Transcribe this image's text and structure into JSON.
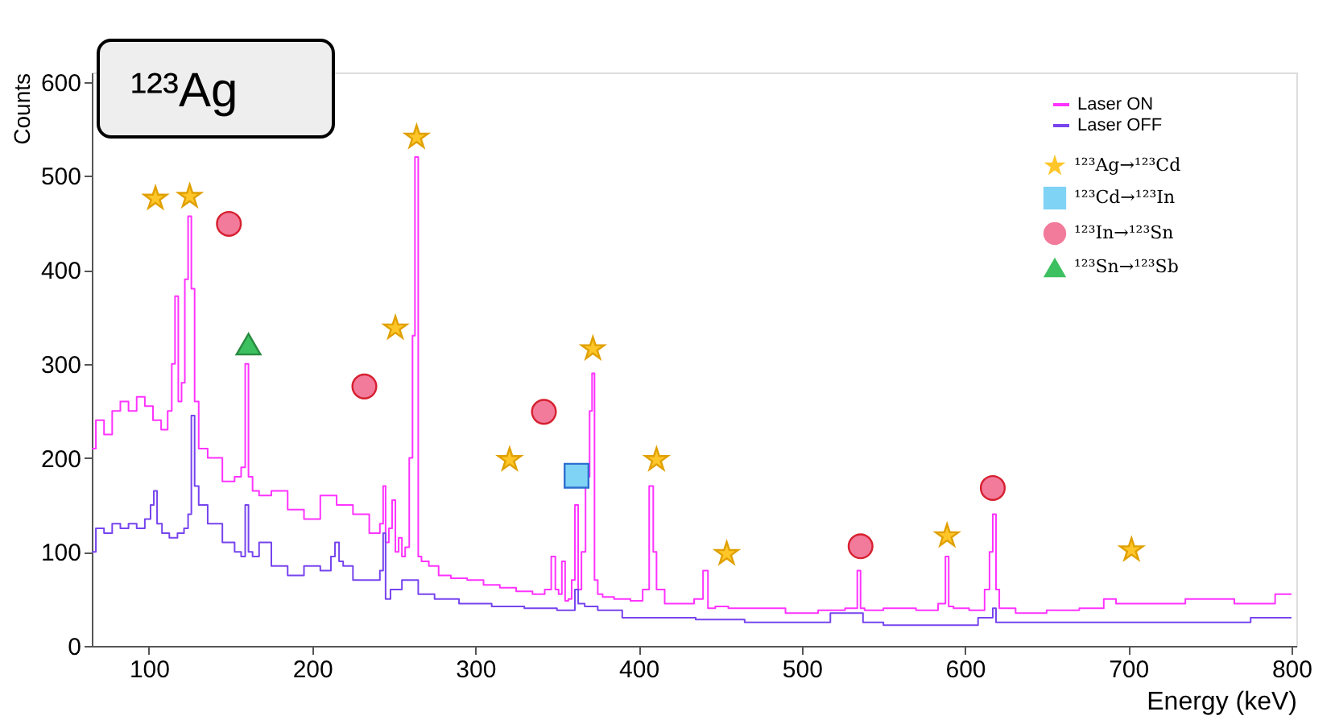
{
  "chart_data": {
    "type": "step",
    "xlabel": "Energy (keV)",
    "ylabel": "Counts",
    "xlim": [
      65,
      803
    ],
    "ylim": [
      0,
      610
    ],
    "xticks": [
      100,
      200,
      300,
      400,
      500,
      600,
      700,
      800
    ],
    "yticks": [
      0,
      100,
      200,
      300,
      400,
      500,
      600
    ],
    "grid": false,
    "legend": "top right",
    "annotations": [
      "¹²³Ag"
    ],
    "series": [
      {
        "name": "Laser ON",
        "color": "#ff33ff",
        "x": [
          65,
          70,
          75,
          80,
          85,
          90,
          95,
          100,
          105,
          110,
          113,
          115,
          117,
          119,
          121,
          123,
          125,
          127,
          129,
          132,
          140,
          150,
          155,
          158,
          160,
          162,
          165,
          170,
          180,
          190,
          200,
          210,
          220,
          230,
          240,
          243,
          244,
          246,
          248,
          250,
          252,
          254,
          256,
          258,
          261,
          262,
          264,
          266,
          268,
          275,
          280,
          290,
          300,
          310,
          320,
          330,
          340,
          345,
          348,
          350,
          352,
          354,
          356,
          358,
          360,
          362,
          364,
          366,
          369,
          371,
          372,
          374,
          376,
          380,
          390,
          400,
          405,
          408,
          410,
          412,
          420,
          430,
          438,
          441,
          444,
          450,
          460,
          480,
          500,
          520,
          533,
          535,
          537,
          540,
          560,
          580,
          587,
          589,
          591,
          595,
          610,
          614,
          616,
          618,
          620,
          622,
          640,
          660,
          680,
          690,
          695,
          720,
          750,
          780,
          800
        ],
        "values": [
          210,
          240,
          225,
          250,
          260,
          250,
          265,
          255,
          240,
          230,
          250,
          300,
          372,
          260,
          280,
          390,
          457,
          380,
          260,
          210,
          200,
          175,
          180,
          190,
          300,
          180,
          165,
          160,
          165,
          145,
          135,
          160,
          150,
          140,
          120,
          130,
          170,
          110,
          125,
          155,
          100,
          115,
          95,
          105,
          200,
          330,
          520,
          95,
          90,
          85,
          75,
          72,
          70,
          65,
          62,
          58,
          55,
          60,
          95,
          60,
          55,
          90,
          48,
          50,
          70,
          150,
          60,
          100,
          180,
          250,
          290,
          70,
          55,
          52,
          50,
          48,
          60,
          170,
          100,
          60,
          45,
          45,
          50,
          80,
          40,
          42,
          40,
          40,
          35,
          38,
          40,
          80,
          40,
          38,
          40,
          38,
          45,
          95,
          42,
          40,
          38,
          60,
          100,
          140,
          60,
          40,
          35,
          38,
          40,
          50,
          45,
          45,
          50,
          45,
          55
        ]
      },
      {
        "name": "Laser OFF",
        "color": "#7744ee",
        "x": [
          65,
          70,
          75,
          80,
          85,
          90,
          95,
          100,
          102,
          104,
          106,
          110,
          115,
          120,
          123,
          125,
          127,
          129,
          132,
          140,
          150,
          155,
          158,
          160,
          162,
          165,
          170,
          180,
          190,
          200,
          210,
          213,
          215,
          218,
          220,
          230,
          240,
          243,
          244,
          246,
          250,
          260,
          270,
          280,
          300,
          320,
          340,
          360,
          362,
          364,
          370,
          380,
          400,
          420,
          450,
          480,
          500,
          535,
          540,
          560,
          580,
          600,
          616,
          618,
          620,
          650,
          700,
          750,
          800
        ],
        "values": [
          100,
          125,
          120,
          130,
          125,
          130,
          125,
          135,
          150,
          165,
          130,
          120,
          115,
          120,
          125,
          140,
          245,
          170,
          150,
          130,
          110,
          100,
          95,
          150,
          100,
          95,
          110,
          85,
          75,
          85,
          80,
          95,
          110,
          90,
          85,
          70,
          70,
          80,
          120,
          50,
          60,
          70,
          55,
          50,
          45,
          42,
          40,
          38,
          60,
          45,
          42,
          38,
          30,
          30,
          28,
          25,
          25,
          35,
          25,
          22,
          22,
          22,
          30,
          40,
          25,
          25,
          25,
          25,
          30
        ]
      },
      {
        "name": "¹²³Ag→¹²³Cd",
        "type": "scatter",
        "marker": "star",
        "color": "#ffc629",
        "x": [
          104,
          125,
          251,
          264,
          321,
          372,
          411,
          454,
          589,
          702
        ],
        "values": [
          476,
          478,
          338,
          541,
          198,
          316,
          198,
          98,
          117,
          102
        ]
      },
      {
        "name": "¹²³Cd→¹²³In",
        "type": "scatter",
        "marker": "square",
        "color": "#7fd3f5",
        "x": [
          362
        ],
        "values": [
          181
        ]
      },
      {
        "name": "¹²³In→¹²³Sn",
        "type": "scatter",
        "marker": "circle",
        "color": "#f27a9a",
        "x": [
          149,
          232,
          342,
          536,
          617
        ],
        "values": [
          449,
          276,
          249,
          106,
          168
        ]
      },
      {
        "name": "¹²³Sn→¹²³Sb",
        "type": "scatter",
        "marker": "triangle",
        "color": "#3cc060",
        "x": [
          161
        ],
        "values": [
          321
        ]
      }
    ]
  }
}
